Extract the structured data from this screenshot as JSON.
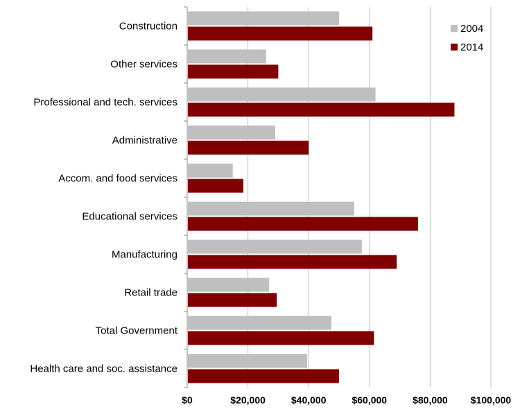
{
  "chart_data": {
    "type": "bar",
    "orientation": "horizontal",
    "categories": [
      "Construction",
      "Other services",
      "Professional and tech. services",
      "Administrative",
      "Accom. and food services",
      "Educational services",
      "Manufacturing",
      "Retail trade",
      "Total Government",
      "Health care and soc. assistance"
    ],
    "series": [
      {
        "name": "2004",
        "color": "#bfbfbf",
        "values": [
          50000,
          26000,
          62000,
          29000,
          15000,
          55000,
          57500,
          27000,
          47500,
          39500
        ]
      },
      {
        "name": "2014",
        "color": "#800000",
        "values": [
          61000,
          30000,
          88000,
          40000,
          18500,
          76000,
          69000,
          29500,
          61500,
          50000
        ]
      }
    ],
    "xlim": [
      0,
      100000
    ],
    "x_ticks": [
      "$0",
      "$20,000",
      "$40,000",
      "$60,000",
      "$80,000",
      "$100,000"
    ],
    "title": "",
    "xlabel": "",
    "ylabel": "",
    "grid": "vertical",
    "legend": "top-right"
  }
}
